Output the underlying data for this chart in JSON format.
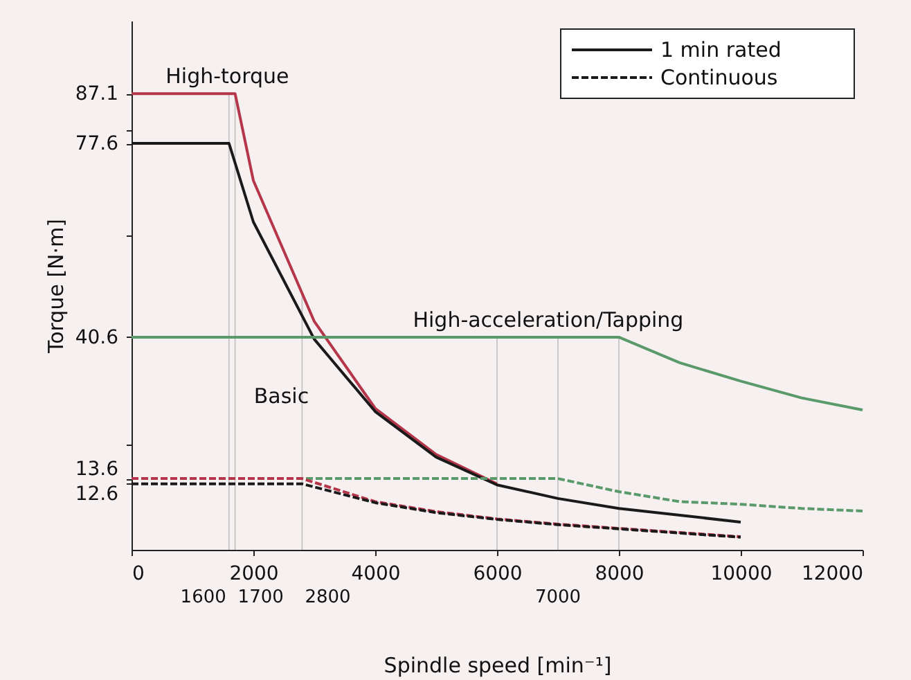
{
  "chart_data": {
    "type": "line",
    "xlabel": "Spindle speed [min⁻¹]",
    "ylabel": "Torque [N·m]",
    "xlim": [
      0,
      12000
    ],
    "xticks": [
      0,
      2000,
      4000,
      6000,
      8000,
      10000,
      12000
    ],
    "ylim": [
      0,
      101
    ],
    "yticks": [
      87.1,
      77.6,
      40.6,
      13.6,
      12.6,
      {
        "value": 20,
        "label": null
      },
      {
        "value": 60,
        "label": null
      },
      {
        "value": 80,
        "label": null
      }
    ],
    "grid": false,
    "legend": "top right",
    "marker": "none",
    "series": [
      {
        "color": "#b5364a",
        "line_style": "solid",
        "x": [
          0,
          1700,
          2000,
          3000,
          4000,
          5000,
          6000
        ],
        "values": [
          87.1,
          87.1,
          70.5,
          43.6,
          27,
          18.2,
          12.6
        ]
      },
      {
        "name": "1 min rated",
        "color": "#1a1a1a",
        "line_style": "solid",
        "x": [
          0,
          1600,
          2000,
          3000,
          4000,
          5000,
          6000,
          7000,
          8000,
          9000,
          10000
        ],
        "values": [
          77.6,
          77.6,
          62.6,
          40.2,
          26.4,
          17.7,
          12.4,
          9.8,
          7.9,
          6.6,
          5.3
        ]
      },
      {
        "color": "#5a9a6a",
        "line_style": "solid",
        "x": [
          0,
          8000,
          9000,
          10000,
          11000,
          12000
        ],
        "values": [
          40.6,
          40.6,
          35.7,
          32.2,
          29,
          26.7
        ]
      },
      {
        "color": "#5a9a6a",
        "line_style": "dashed",
        "x": [
          0,
          7000,
          8000,
          9000,
          10000,
          11000,
          12000
        ],
        "values": [
          13.6,
          13.6,
          11.1,
          9.2,
          8.7,
          7.9,
          7.4
        ]
      },
      {
        "color": "#b5364a",
        "line_style": "dashed",
        "x": [
          0,
          2800,
          4000,
          5000,
          6000,
          7000,
          8000,
          9000,
          10000
        ],
        "values": [
          13.6,
          13.6,
          9.2,
          7.3,
          5.9,
          4.9,
          4.1,
          3.3,
          2.5
        ]
      },
      {
        "name": "Continuous",
        "color": "#1a1a1a",
        "line_style": "dashed",
        "x": [
          0,
          2800,
          4000,
          5000,
          6000,
          7000,
          8000,
          9000,
          10000
        ],
        "values": [
          12.6,
          12.6,
          9,
          7.1,
          5.8,
          4.8,
          4,
          3.2,
          2.4
        ]
      }
    ],
    "ref_lines": [
      {
        "axis": "x",
        "value": 1600,
        "label": "1600",
        "color": "#c8c8c8"
      },
      {
        "axis": "x",
        "value": 1700,
        "label": "1700",
        "color": "#c8c8c8"
      },
      {
        "axis": "x",
        "value": 2800,
        "label": "2800",
        "color": "#c8c8c8"
      },
      {
        "axis": "x",
        "value": 6000,
        "color": "#c8c8c8"
      },
      {
        "axis": "x",
        "value": 7000,
        "label": "7000",
        "color": "#c8c8c8"
      },
      {
        "axis": "x",
        "value": 8000,
        "color": "#c8c8c8"
      }
    ],
    "annotations": [
      "High-torque",
      "Basic",
      "High-acceleration/Tapping"
    ]
  }
}
